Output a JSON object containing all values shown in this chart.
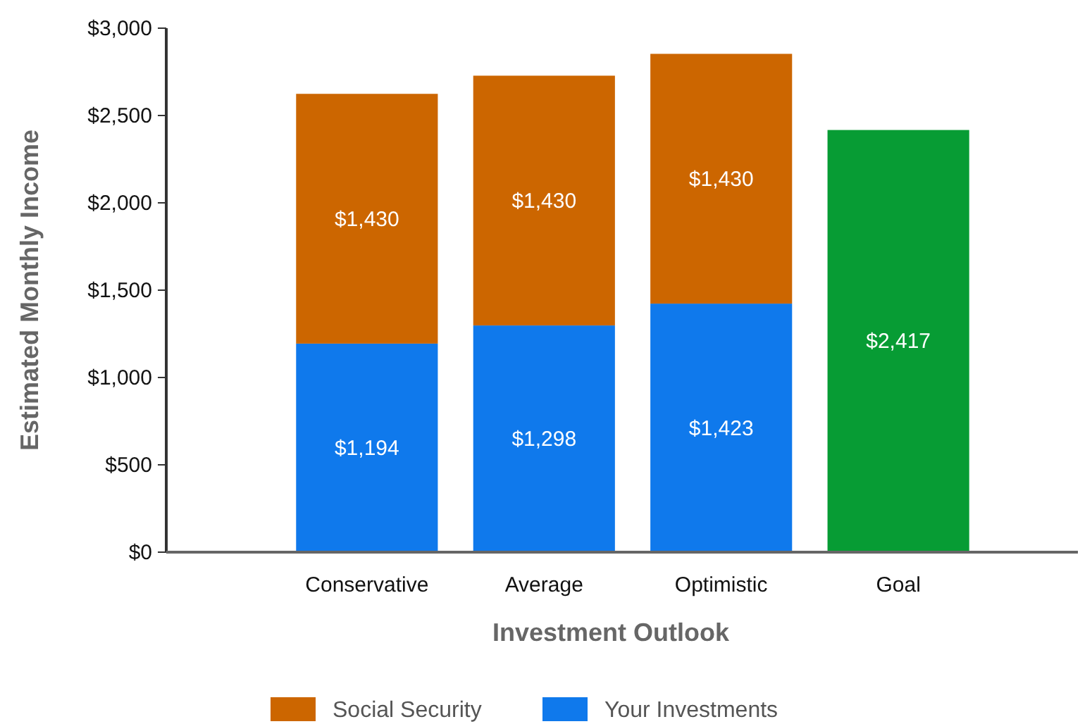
{
  "chart_data": {
    "type": "bar",
    "stacked": true,
    "xlabel": "Investment Outlook",
    "ylabel": "Estimated Monthly Income",
    "categories": [
      "Conservative",
      "Average",
      "Optimistic",
      "Goal"
    ],
    "series": [
      {
        "name": "Your Investments",
        "color": "#0f79ec",
        "values": [
          1194,
          1298,
          1423,
          null
        ],
        "value_labels": [
          "$1,194",
          "$1,298",
          "$1,423",
          null
        ]
      },
      {
        "name": "Social Security",
        "color": "#cc6600",
        "values": [
          1430,
          1430,
          1430,
          null
        ],
        "value_labels": [
          "$1,430",
          "$1,430",
          "$1,430",
          null
        ]
      },
      {
        "color": "#079c34",
        "values": [
          null,
          null,
          null,
          2417
        ],
        "value_labels": [
          null,
          null,
          null,
          "$2,417"
        ]
      }
    ],
    "ylim": [
      0,
      3000
    ],
    "yticks": [
      {
        "value": 0,
        "label": "$0"
      },
      {
        "value": 500,
        "label": "$500"
      },
      {
        "value": 1000,
        "label": "$1,000"
      },
      {
        "value": 1500,
        "label": "$1,500"
      },
      {
        "value": 2000,
        "label": "$2,000"
      },
      {
        "value": 2500,
        "label": "$2,500"
      },
      {
        "value": 3000,
        "label": "$3,000"
      }
    ],
    "grid": false,
    "legend": "bottom"
  }
}
